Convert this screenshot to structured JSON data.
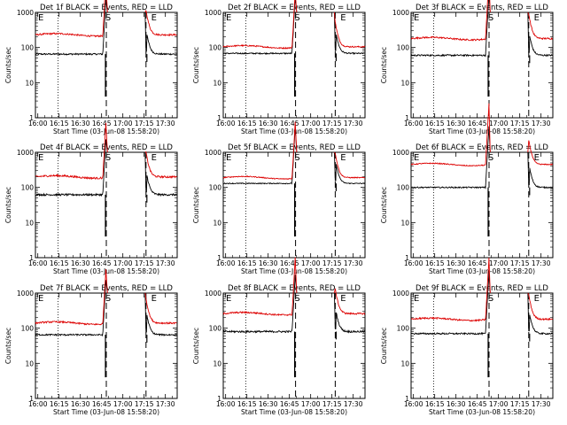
{
  "figure": {
    "xlabel": "Start Time (03-Jun-08 15:58:20)",
    "ylabel": "Counts/sec",
    "x_tick_labels": [
      "16:00",
      "16:15",
      "16:30",
      "16:45",
      "17:00",
      "17:15",
      "17:30"
    ],
    "y_tick_labels": [
      "1000",
      "100",
      "10",
      "1"
    ]
  },
  "chart_data": [
    {
      "type": "line",
      "title": "Det 1f BLACK = Events, RED = LLD",
      "series": [
        {
          "name": "Events",
          "color": "#000000",
          "level": 65,
          "noise": 0.05
        },
        {
          "name": "LLD",
          "color": "#dd0000",
          "level": 230,
          "noise": 0.05
        }
      ],
      "x_range_min": [
        0,
        100
      ],
      "y_range": [
        1,
        1000
      ],
      "y_scale": "log",
      "markers": [
        "S",
        "E"
      ],
      "saa_exit_min": [
        50,
        78
      ],
      "dashed_lines_min": [
        50,
        78
      ],
      "dotted_lines_min": [
        16
      ]
    },
    {
      "type": "line",
      "title": "Det 2f BLACK = Events, RED = LLD",
      "series": [
        {
          "name": "Events",
          "color": "#000000",
          "level": 68,
          "noise": 0.04
        },
        {
          "name": "LLD",
          "color": "#dd0000",
          "level": 105,
          "noise": 0.04
        }
      ],
      "x_range_min": [
        0,
        100
      ],
      "y_range": [
        1,
        1000
      ],
      "y_scale": "log",
      "markers": [
        "S",
        "E"
      ],
      "saa_exit_min": [
        51,
        79
      ],
      "dashed_lines_min": [
        51,
        79
      ],
      "dotted_lines_min": [
        16
      ]
    },
    {
      "type": "line",
      "title": "Det 3f BLACK = Events, RED = LLD",
      "series": [
        {
          "name": "Events",
          "color": "#000000",
          "level": 60,
          "noise": 0.05
        },
        {
          "name": "LLD",
          "color": "#dd0000",
          "level": 180,
          "noise": 0.05
        }
      ],
      "x_range_min": [
        0,
        100
      ],
      "y_range": [
        1,
        1000
      ],
      "y_scale": "log",
      "markers": [
        "S",
        "E"
      ],
      "saa_exit_min": [
        55,
        83
      ],
      "dashed_lines_min": [
        55,
        83
      ],
      "dotted_lines_min": [
        16
      ]
    },
    {
      "type": "line",
      "title": "Det 4f BLACK = Events, RED = LLD",
      "series": [
        {
          "name": "Events",
          "color": "#000000",
          "level": 62,
          "noise": 0.06
        },
        {
          "name": "LLD",
          "color": "#dd0000",
          "level": 200,
          "noise": 0.06
        }
      ],
      "x_range_min": [
        0,
        100
      ],
      "y_range": [
        1,
        1000
      ],
      "y_scale": "log",
      "markers": [
        "S",
        "E"
      ],
      "saa_exit_min": [
        50,
        78
      ],
      "dashed_lines_min": [
        50,
        78
      ],
      "dotted_lines_min": [
        16
      ]
    },
    {
      "type": "line",
      "title": "Det 5f BLACK = Events, RED = LLD",
      "series": [
        {
          "name": "Events",
          "color": "#000000",
          "level": 130,
          "noise": 0.03
        },
        {
          "name": "LLD",
          "color": "#dd0000",
          "level": 190,
          "noise": 0.03
        }
      ],
      "x_range_min": [
        0,
        100
      ],
      "y_range": [
        1,
        1000
      ],
      "y_scale": "log",
      "markers": [
        "S",
        "E"
      ],
      "saa_exit_min": [
        51,
        79
      ],
      "dashed_lines_min": [
        51,
        79
      ],
      "dotted_lines_min": [
        16
      ]
    },
    {
      "type": "line",
      "title": "Det 6f BLACK = Events, RED = LLD",
      "series": [
        {
          "name": "Events",
          "color": "#000000",
          "level": 100,
          "noise": 0.04
        },
        {
          "name": "LLD",
          "color": "#dd0000",
          "level": 450,
          "noise": 0.03
        }
      ],
      "x_range_min": [
        0,
        100
      ],
      "y_range": [
        1,
        1000
      ],
      "y_scale": "log",
      "markers": [
        "S",
        "E"
      ],
      "saa_exit_min": [
        55,
        83
      ],
      "dashed_lines_min": [
        55,
        83
      ],
      "dotted_lines_min": [
        16
      ]
    },
    {
      "type": "line",
      "title": "Det 7f BLACK = Events, RED = LLD",
      "series": [
        {
          "name": "Events",
          "color": "#000000",
          "level": 65,
          "noise": 0.05
        },
        {
          "name": "LLD",
          "color": "#dd0000",
          "level": 140,
          "noise": 0.05
        }
      ],
      "x_range_min": [
        0,
        100
      ],
      "y_range": [
        1,
        1000
      ],
      "y_scale": "log",
      "markers": [
        "S",
        "E"
      ],
      "saa_exit_min": [
        50,
        78
      ],
      "dashed_lines_min": [
        50,
        78
      ],
      "dotted_lines_min": [
        16
      ]
    },
    {
      "type": "line",
      "title": "Det 8f BLACK = Events, RED = LLD",
      "series": [
        {
          "name": "Events",
          "color": "#000000",
          "level": 80,
          "noise": 0.06
        },
        {
          "name": "LLD",
          "color": "#dd0000",
          "level": 260,
          "noise": 0.05
        }
      ],
      "x_range_min": [
        0,
        100
      ],
      "y_range": [
        1,
        1000
      ],
      "y_scale": "log",
      "markers": [
        "S",
        "E"
      ],
      "saa_exit_min": [
        51,
        79
      ],
      "dashed_lines_min": [
        51,
        79
      ],
      "dotted_lines_min": [
        16
      ]
    },
    {
      "type": "line",
      "title": "Det 9f BLACK = Events, RED = LLD",
      "series": [
        {
          "name": "Events",
          "color": "#000000",
          "level": 70,
          "noise": 0.05
        },
        {
          "name": "LLD",
          "color": "#dd0000",
          "level": 180,
          "noise": 0.05
        }
      ],
      "x_range_min": [
        0,
        100
      ],
      "y_range": [
        1,
        1000
      ],
      "y_scale": "log",
      "markers": [
        "S",
        "E"
      ],
      "saa_exit_min": [
        55,
        83
      ],
      "dashed_lines_min": [
        55,
        83
      ],
      "dotted_lines_min": [
        16
      ]
    }
  ]
}
